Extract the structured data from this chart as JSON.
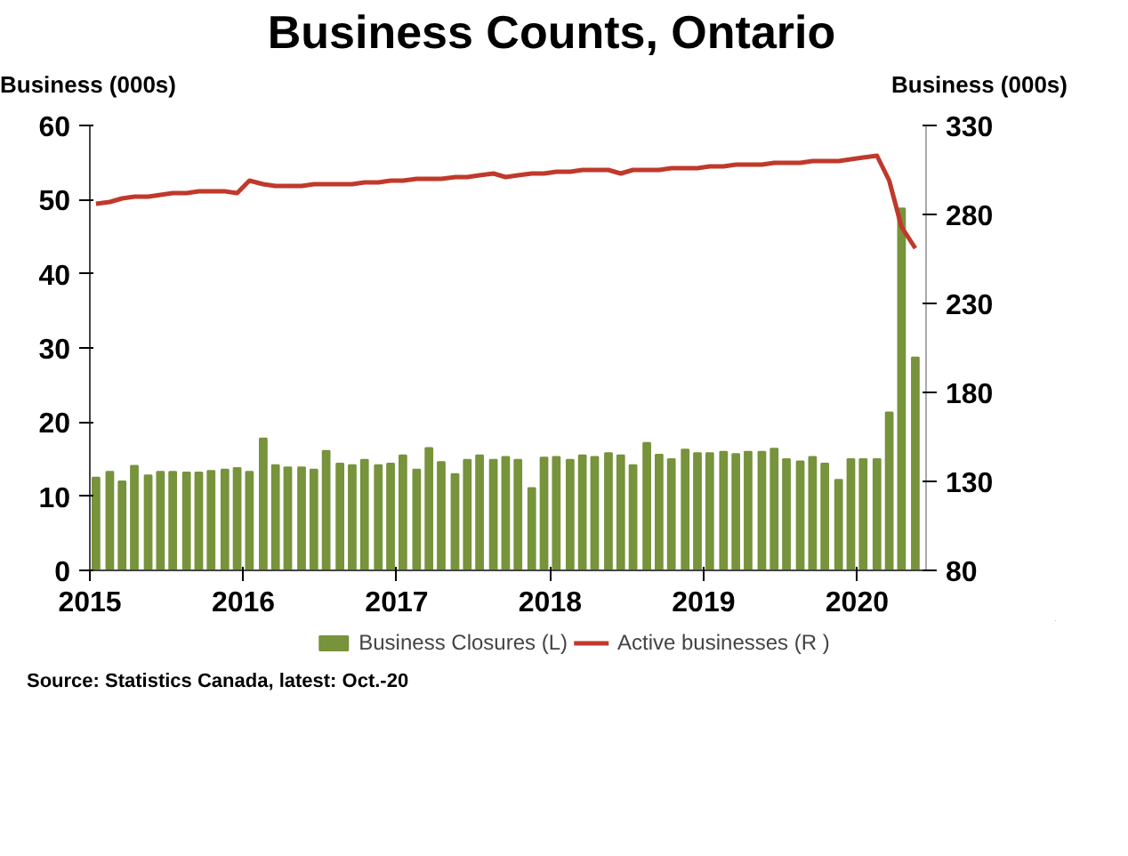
{
  "chart_data": {
    "type": "bar",
    "title": "Business Counts, Ontario",
    "ylabel": "Business (000s)",
    "y2label": "Business (000s)",
    "x": [
      2015.04,
      2015.13,
      2015.21,
      2015.29,
      2015.38,
      2015.46,
      2015.54,
      2015.63,
      2015.71,
      2015.79,
      2015.88,
      2015.96,
      2016.04,
      2016.13,
      2016.21,
      2016.29,
      2016.38,
      2016.46,
      2016.54,
      2016.63,
      2016.71,
      2016.79,
      2016.88,
      2016.96,
      2017.04,
      2017.13,
      2017.21,
      2017.29,
      2017.38,
      2017.46,
      2017.54,
      2017.63,
      2017.71,
      2017.79,
      2017.88,
      2017.96,
      2018.04,
      2018.13,
      2018.21,
      2018.29,
      2018.38,
      2018.46,
      2018.54,
      2018.63,
      2018.71,
      2018.79,
      2018.88,
      2018.96,
      2019.04,
      2019.13,
      2019.21,
      2019.29,
      2019.38,
      2019.46,
      2019.54,
      2019.63,
      2019.71,
      2019.79,
      2019.88,
      2019.96,
      2020.04,
      2020.13,
      2020.21,
      2020.29,
      2020.38
    ],
    "series": [
      {
        "name": "Business Closures (L)",
        "color": "#77933c",
        "values": [
          12.5,
          13.3,
          12.0,
          14.1,
          12.8,
          13.3,
          13.3,
          13.2,
          13.2,
          13.4,
          13.6,
          13.8,
          13.3,
          17.8,
          14.2,
          13.9,
          13.9,
          13.6,
          16.1,
          14.4,
          14.2,
          14.9,
          14.2,
          14.4,
          15.5,
          13.6,
          16.5,
          14.6,
          13.0,
          14.9,
          15.5,
          14.9,
          15.3,
          14.9,
          11.1,
          15.2,
          15.3,
          14.9,
          15.5,
          15.3,
          15.8,
          15.5,
          14.2,
          17.2,
          15.6,
          15.0,
          16.3,
          15.8,
          15.8,
          16.0,
          15.7,
          16.0,
          16.0,
          16.4,
          15.0,
          14.7,
          15.3,
          14.4,
          12.2,
          15.0,
          15.0,
          15.0,
          21.3,
          48.8,
          28.7
        ]
      },
      {
        "name": "Active businesses (R )",
        "type": "line",
        "axis": "y2",
        "color": "#c0392b",
        "values": [
          286,
          287,
          289,
          290,
          290,
          291,
          292,
          292,
          293,
          293,
          293,
          292,
          299,
          297,
          296,
          296,
          296,
          297,
          297,
          297,
          297,
          298,
          298,
          299,
          299,
          300,
          300,
          300,
          301,
          301,
          302,
          303,
          301,
          302,
          303,
          303,
          304,
          304,
          305,
          305,
          305,
          303,
          305,
          305,
          305,
          306,
          306,
          306,
          307,
          307,
          308,
          308,
          308,
          309,
          309,
          309,
          310,
          310,
          310,
          311,
          312,
          313,
          299,
          273,
          261
        ]
      }
    ],
    "xlim": [
      2015,
      2020.45
    ],
    "xticks": [
      2015,
      2016,
      2017,
      2018,
      2019,
      2020
    ],
    "ylim": [
      0,
      60
    ],
    "yticks": [
      0,
      10,
      20,
      30,
      40,
      50,
      60
    ],
    "y2lim": [
      80,
      330
    ],
    "y2ticks": [
      80,
      130,
      180,
      230,
      280,
      330
    ],
    "grid": false,
    "legend": "bottom",
    "annotations": [
      "Source: Statistics Canada, latest: Oct.-20"
    ]
  }
}
